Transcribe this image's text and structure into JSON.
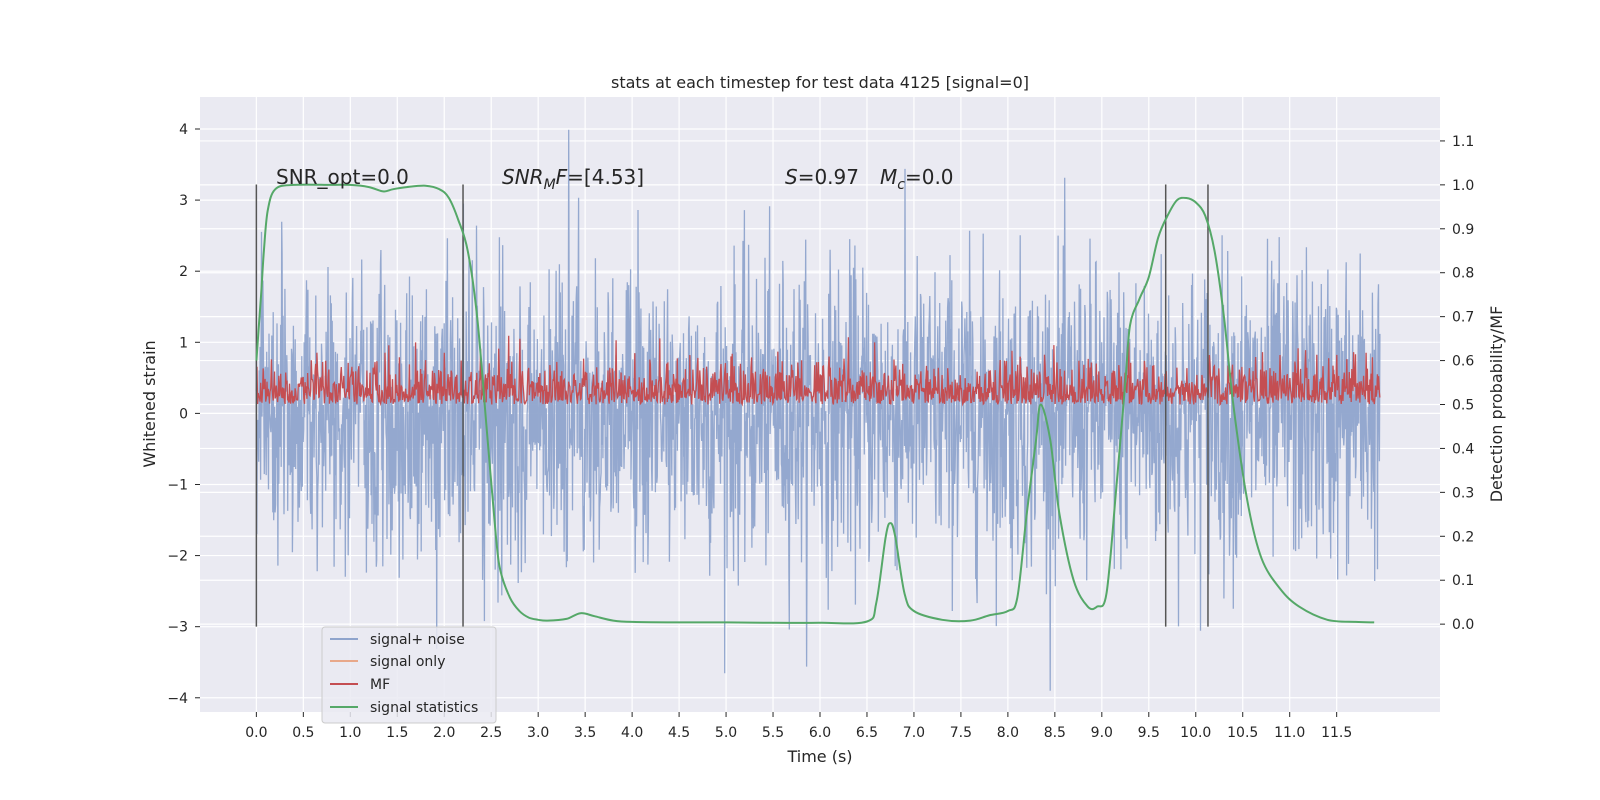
{
  "chart_data": {
    "type": "line",
    "title": "stats at each timestep for test data 4125 [signal=0]",
    "xlabel": "Time (s)",
    "ylabel": "Whitened strain",
    "y2label": "Detection probability/MF",
    "xlim": [
      -0.6,
      12.6
    ],
    "ylim": [
      -4.2,
      4.45
    ],
    "y2lim": [
      -0.2,
      1.2
    ],
    "x_ticks": [
      0.0,
      0.5,
      1.0,
      1.5,
      2.0,
      2.5,
      3.0,
      3.5,
      4.0,
      4.5,
      5.0,
      5.5,
      6.0,
      6.5,
      7.0,
      7.5,
      8.0,
      8.5,
      9.0,
      9.5,
      10.0,
      10.5,
      11.0,
      11.5
    ],
    "x_tick_labels": [
      "0.0",
      "0.5",
      "1.0",
      "1.5",
      "2.0",
      "2.5",
      "3.0",
      "3.5",
      "4.0",
      "4.5",
      "5.0",
      "5.5",
      "6.0",
      "6.5",
      "7.0",
      "7.5",
      "8.0",
      "8.5",
      "9.0",
      "9.5",
      "10.0",
      "10.5",
      "11.0",
      "11.5"
    ],
    "y_ticks": [
      4,
      3,
      2,
      1,
      0,
      -1,
      -2,
      -3,
      -4
    ],
    "y_tick_labels": [
      "4",
      "3",
      "2",
      "1",
      "0",
      "−1",
      "−2",
      "−3",
      "−4"
    ],
    "y2_ticks": [
      1.1,
      1.0,
      0.9,
      0.8,
      0.7,
      0.6,
      0.5,
      0.4,
      0.3,
      0.2,
      0.1,
      0.0
    ],
    "y2_tick_labels": [
      "1.1",
      "1.0",
      "0.9",
      "0.8",
      "0.7",
      "0.6",
      "0.5",
      "0.4",
      "0.3",
      "0.2",
      "0.1",
      "0.0"
    ],
    "grid": true,
    "legend_position": "bottom-left",
    "series": [
      {
        "name": "signal+ noise",
        "color": "#8fa4cc",
        "axis": "left",
        "note_range": [
          -2.0,
          2.0
        ],
        "x_range": [
          0.0,
          11.96
        ]
      },
      {
        "name": "signal only",
        "color": "#e8a88a",
        "axis": "left"
      },
      {
        "name": "MF",
        "color": "#c44e52",
        "axis": "right",
        "x_range": [
          0.0,
          11.96
        ],
        "band": [
          0.5,
          0.64
        ]
      },
      {
        "name": "signal statistics",
        "color": "#55a868",
        "axis": "right",
        "x": [
          0.0,
          0.05,
          0.08,
          0.12,
          0.2,
          0.4,
          0.8,
          1.0,
          1.2,
          1.35,
          1.45,
          1.6,
          1.8,
          1.95,
          2.05,
          2.15,
          2.25,
          2.35,
          2.45,
          2.55,
          2.6,
          2.7,
          2.8,
          2.9,
          3.0,
          3.1,
          3.3,
          3.45,
          3.6,
          3.8,
          4.0,
          4.5,
          5.0,
          5.5,
          6.0,
          6.5,
          6.6,
          6.7,
          6.75,
          6.8,
          6.9,
          7.0,
          7.3,
          7.6,
          7.8,
          8.0,
          8.1,
          8.2,
          8.3,
          8.35,
          8.45,
          8.55,
          8.7,
          8.85,
          8.95,
          9.05,
          9.15,
          9.25,
          9.3,
          9.4,
          9.5,
          9.6,
          9.7,
          9.8,
          9.9,
          10.0,
          10.1,
          10.2,
          10.3,
          10.4,
          10.55,
          10.7,
          10.9,
          11.1,
          11.4,
          11.7,
          11.9
        ],
        "y": [
          0.6,
          0.75,
          0.85,
          0.94,
          0.99,
          1.0,
          1.0,
          1.0,
          0.995,
          0.985,
          0.99,
          0.995,
          0.998,
          0.99,
          0.97,
          0.92,
          0.85,
          0.7,
          0.45,
          0.2,
          0.12,
          0.06,
          0.03,
          0.015,
          0.01,
          0.008,
          0.012,
          0.025,
          0.018,
          0.008,
          0.005,
          0.004,
          0.004,
          0.003,
          0.003,
          0.006,
          0.05,
          0.2,
          0.23,
          0.2,
          0.07,
          0.03,
          0.01,
          0.008,
          0.02,
          0.03,
          0.06,
          0.25,
          0.42,
          0.5,
          0.42,
          0.25,
          0.1,
          0.04,
          0.04,
          0.07,
          0.3,
          0.55,
          0.68,
          0.74,
          0.79,
          0.88,
          0.93,
          0.965,
          0.97,
          0.96,
          0.93,
          0.85,
          0.7,
          0.5,
          0.28,
          0.15,
          0.08,
          0.04,
          0.01,
          0.005,
          0.004
        ]
      }
    ],
    "vertical_lines": [
      0.0,
      2.2,
      9.68,
      10.13
    ],
    "annotations": [
      {
        "text": "SNR_opt=0.0"
      },
      {
        "text": "SNR_MF=[4.53]"
      },
      {
        "text": "S=0.97"
      },
      {
        "text": "M_c=0.0"
      }
    ]
  },
  "legend": {
    "items": [
      {
        "label": "signal+ noise",
        "color": "#8fa4cc"
      },
      {
        "label": "signal only",
        "color": "#e8a88a"
      },
      {
        "label": "MF",
        "color": "#c44e52"
      },
      {
        "label": "signal statistics",
        "color": "#55a868"
      }
    ]
  }
}
